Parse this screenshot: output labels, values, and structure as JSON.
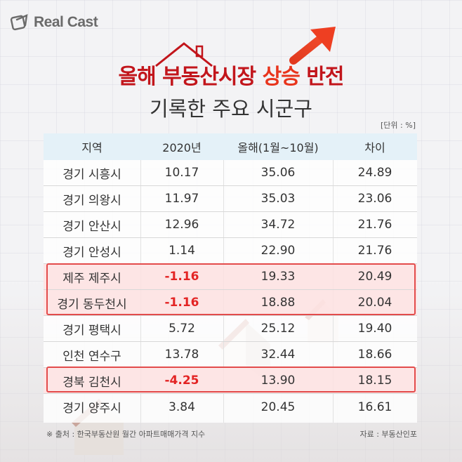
{
  "logo": {
    "text": "Real Cast"
  },
  "title": {
    "part1": "올해 부동산시장 ",
    "part2": "상승",
    "part3": " 반전",
    "subtitle": "기록한 주요 시군구"
  },
  "unit": "[단위 : %]",
  "table": {
    "headers": [
      "지역",
      "2020년",
      "올해(1월~10월)",
      "차이"
    ],
    "rows": [
      {
        "region": "경기 시흥시",
        "y2020": "10.17",
        "ytd": "35.06",
        "diff": "24.89",
        "highlight": false
      },
      {
        "region": "경기 의왕시",
        "y2020": "11.97",
        "ytd": "35.03",
        "diff": "23.06",
        "highlight": false
      },
      {
        "region": "경기 안산시",
        "y2020": "12.96",
        "ytd": "34.72",
        "diff": "21.76",
        "highlight": false
      },
      {
        "region": "경기 안성시",
        "y2020": "1.14",
        "ytd": "22.90",
        "diff": "21.76",
        "highlight": false
      },
      {
        "region": "제주 제주시",
        "y2020": "-1.16",
        "ytd": "19.33",
        "diff": "20.49",
        "highlight": true
      },
      {
        "region": "경기 동두천시",
        "y2020": "-1.16",
        "ytd": "18.88",
        "diff": "20.04",
        "highlight": true
      },
      {
        "region": "경기 평택시",
        "y2020": "5.72",
        "ytd": "25.12",
        "diff": "19.40",
        "highlight": false
      },
      {
        "region": "인천 연수구",
        "y2020": "13.78",
        "ytd": "32.44",
        "diff": "18.66",
        "highlight": false
      },
      {
        "region": "경북 김천시",
        "y2020": "-4.25",
        "ytd": "13.90",
        "diff": "18.15",
        "highlight": true
      },
      {
        "region": "경기 양주시",
        "y2020": "3.84",
        "ytd": "20.45",
        "diff": "16.61",
        "highlight": false
      }
    ]
  },
  "footnote": "※ 출처 : 한국부동산원 월간 아파트매매가격 지수",
  "source": "자료 : 부동산인포",
  "colors": {
    "title_red": "#c2151b",
    "highlight_text": "#e8341c",
    "negative_value": "#e32424",
    "header_bg": "#e4f1f8",
    "highlight_row_bg": "#fde0e0",
    "highlight_border": "#e34b4b"
  },
  "icons": [
    "realcast-logo-icon",
    "house-roof-icon",
    "up-arrow-icon"
  ]
}
